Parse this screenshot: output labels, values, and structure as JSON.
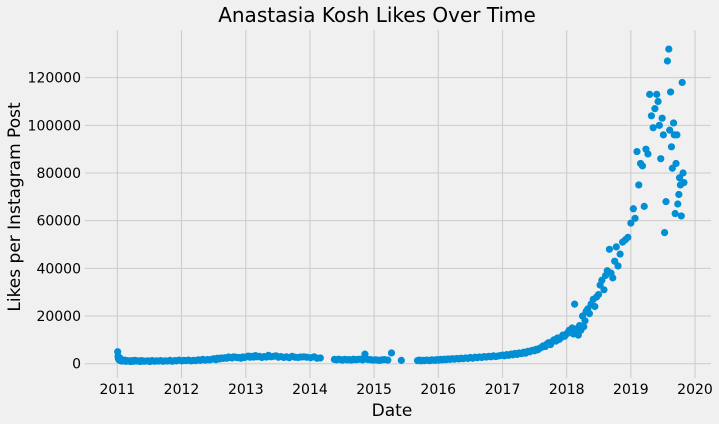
{
  "chart_data": {
    "type": "scatter",
    "title": "Anastasia Kosh Likes Over Time",
    "xlabel": "Date",
    "ylabel": "Likes per Instagram Post",
    "x_type": "date",
    "xlim": [
      "2010-07-01",
      "2020-04-01"
    ],
    "ylim": [
      -6000,
      140000
    ],
    "x_ticks": [
      "2011",
      "2012",
      "2013",
      "2014",
      "2015",
      "2016",
      "2017",
      "2018",
      "2019",
      "2020"
    ],
    "y_ticks": [
      0,
      20000,
      40000,
      60000,
      80000,
      100000,
      120000
    ],
    "grid": true,
    "legend": "none",
    "marker_color": "#008fd5",
    "background": "#f0f0f0",
    "series": [
      {
        "x": [
          "2011-01-03",
          "2011-01-05",
          "2011-01-07",
          "2011-01-10",
          "2011-01-12",
          "2011-01-15",
          "2011-01-18",
          "2011-01-22",
          "2011-01-26",
          "2011-02-01",
          "2011-02-06",
          "2011-02-12",
          "2011-02-18",
          "2011-02-25",
          "2011-03-03",
          "2011-03-10",
          "2011-03-18",
          "2011-03-26",
          "2011-04-03",
          "2011-04-12",
          "2011-04-20",
          "2011-05-01",
          "2011-05-10",
          "2011-05-20",
          "2011-06-01",
          "2011-06-12",
          "2011-06-25",
          "2011-07-05",
          "2011-07-18",
          "2011-08-01",
          "2011-08-12",
          "2011-08-25",
          "2011-09-05",
          "2011-09-18",
          "2011-10-01",
          "2011-10-15",
          "2011-10-28",
          "2011-11-10",
          "2011-11-25",
          "2011-12-05",
          "2011-12-18",
          "2012-01-03",
          "2012-01-15",
          "2012-01-28",
          "2012-02-10",
          "2012-02-25",
          "2012-03-08",
          "2012-03-22",
          "2012-04-05",
          "2012-04-18",
          "2012-05-01",
          "2012-05-14",
          "2012-05-28",
          "2012-06-10",
          "2012-06-22",
          "2012-07-05",
          "2012-07-15",
          "2012-07-25",
          "2012-08-05",
          "2012-08-15",
          "2012-08-25",
          "2012-09-05",
          "2012-09-15",
          "2012-09-25",
          "2012-10-05",
          "2012-10-15",
          "2012-10-25",
          "2012-11-05",
          "2012-11-15",
          "2012-11-25",
          "2012-12-05",
          "2012-12-15",
          "2012-12-25",
          "2013-01-05",
          "2013-01-15",
          "2013-01-25",
          "2013-02-05",
          "2013-02-15",
          "2013-02-25",
          "2013-03-08",
          "2013-03-20",
          "2013-04-02",
          "2013-04-15",
          "2013-04-28",
          "2013-05-10",
          "2013-05-25",
          "2013-06-08",
          "2013-06-22",
          "2013-07-05",
          "2013-07-20",
          "2013-08-05",
          "2013-08-20",
          "2013-09-05",
          "2013-09-22",
          "2013-10-08",
          "2013-10-25",
          "2013-11-10",
          "2013-11-28",
          "2013-12-15",
          "2014-01-05",
          "2014-01-25",
          "2014-02-10",
          "2014-03-01",
          "2014-05-20",
          "2014-06-01",
          "2014-06-12",
          "2014-06-25",
          "2014-07-05",
          "2014-07-18",
          "2014-08-01",
          "2014-08-12",
          "2014-08-25",
          "2014-09-05",
          "2014-09-18",
          "2014-10-01",
          "2014-10-15",
          "2014-10-28",
          "2014-11-10",
          "2014-11-25",
          "2014-12-10",
          "2014-12-25",
          "2015-01-08",
          "2015-01-20",
          "2015-02-01",
          "2015-02-15",
          "2015-03-01",
          "2015-03-20",
          "2015-04-10",
          "2015-06-05",
          "2015-09-05",
          "2015-09-15",
          "2015-09-25",
          "2015-10-05",
          "2015-10-15",
          "2015-10-25",
          "2015-11-05",
          "2015-11-15",
          "2015-11-25",
          "2015-12-05",
          "2015-12-15",
          "2015-12-25",
          "2016-01-05",
          "2016-01-15",
          "2016-01-25",
          "2016-02-05",
          "2016-02-15",
          "2016-02-25",
          "2016-03-08",
          "2016-03-20",
          "2016-04-02",
          "2016-04-15",
          "2016-04-28",
          "2016-05-10",
          "2016-05-22",
          "2016-06-05",
          "2016-06-18",
          "2016-07-01",
          "2016-07-15",
          "2016-07-28",
          "2016-08-10",
          "2016-08-22",
          "2016-09-05",
          "2016-09-18",
          "2016-10-01",
          "2016-10-14",
          "2016-10-27",
          "2016-11-10",
          "2016-11-23",
          "2016-12-05",
          "2016-12-18",
          "2017-01-01",
          "2017-01-12",
          "2017-01-25",
          "2017-02-05",
          "2017-02-18",
          "2017-03-01",
          "2017-03-12",
          "2017-03-25",
          "2017-04-05",
          "2017-04-18",
          "2017-05-01",
          "2017-05-12",
          "2017-05-25",
          "2017-06-05",
          "2017-06-18",
          "2017-07-01",
          "2017-07-10",
          "2017-07-20",
          "2017-08-01",
          "2017-08-10",
          "2017-08-20",
          "2017-09-01",
          "2017-09-10",
          "2017-09-20",
          "2017-10-01",
          "2017-10-10",
          "2017-10-20",
          "2017-11-01",
          "2017-11-10",
          "2017-11-20",
          "2017-12-01",
          "2017-12-10",
          "2017-12-20",
          "2018-01-01",
          "2018-01-08",
          "2018-01-15",
          "2018-01-22",
          "2018-02-01",
          "2018-02-08",
          "2018-02-15",
          "2018-02-22",
          "2018-03-01",
          "2018-03-08",
          "2018-03-15",
          "2018-03-22",
          "2018-04-01",
          "2018-04-08",
          "2018-04-15",
          "2018-04-22",
          "2018-05-01",
          "2018-05-10",
          "2018-05-20",
          "2018-06-01",
          "2018-06-10",
          "2018-06-20",
          "2018-07-01",
          "2018-07-10",
          "2018-07-20",
          "2018-08-01",
          "2018-08-10",
          "2018-08-20",
          "2018-09-01",
          "2018-09-10",
          "2018-09-20",
          "2018-10-01",
          "2018-10-10",
          "2018-10-20",
          "2018-11-01",
          "2018-11-15",
          "2018-12-01",
          "2018-12-15",
          "2019-01-01",
          "2019-01-15",
          "2019-01-25",
          "2019-02-05",
          "2019-02-15",
          "2019-02-25",
          "2019-03-08",
          "2019-03-18",
          "2019-03-28",
          "2019-04-08",
          "2019-04-18",
          "2019-04-28",
          "2019-05-08",
          "2019-05-18",
          "2019-05-28",
          "2019-06-05",
          "2019-06-12",
          "2019-06-20",
          "2019-06-28",
          "2019-07-05",
          "2019-07-12",
          "2019-07-20",
          "2019-07-28",
          "2019-08-05",
          "2019-08-10",
          "2019-08-15",
          "2019-08-20",
          "2019-08-25",
          "2019-09-01",
          "2019-09-05",
          "2019-09-10",
          "2019-09-15",
          "2019-09-20",
          "2019-09-25",
          "2019-10-01",
          "2019-10-05",
          "2019-10-10",
          "2019-10-15",
          "2019-10-20",
          "2019-10-25",
          "2019-10-30"
        ],
        "y": [
          5000,
          3200,
          2100,
          1800,
          1500,
          2400,
          1300,
          1600,
          1100,
          1400,
          1200,
          1500,
          1000,
          1300,
          1100,
          1200,
          900,
          1300,
          1000,
          1400,
          1100,
          1200,
          900,
          1300,
          1000,
          1100,
          1200,
          900,
          1300,
          1000,
          1200,
          1100,
          1300,
          1000,
          1200,
          1100,
          1400,
          1000,
          1300,
          1200,
          1500,
          1200,
          1400,
          1300,
          1500,
          1200,
          1400,
          1300,
          1600,
          1400,
          1800,
          1500,
          1700,
          1600,
          1900,
          2100,
          1700,
          2300,
          2000,
          2400,
          2200,
          2500,
          2300,
          2800,
          2600,
          2400,
          2900,
          2700,
          2500,
          2600,
          2300,
          2800,
          2600,
          2900,
          3200,
          2700,
          3100,
          2800,
          3400,
          2900,
          3100,
          2600,
          3000,
          2800,
          3500,
          2900,
          3100,
          3300,
          2700,
          3000,
          2600,
          2900,
          2500,
          3100,
          2700,
          2600,
          2800,
          2900,
          2700,
          2500,
          2900,
          2300,
          2400,
          1800,
          1600,
          1900,
          1700,
          1500,
          1800,
          1600,
          1700,
          1500,
          1900,
          1700,
          1800,
          1900,
          1600,
          4000,
          1800,
          1700,
          1500,
          1600,
          1500,
          1400,
          1600,
          1700,
          1500,
          4500,
          1400,
          1300,
          1500,
          1200,
          1400,
          1300,
          1500,
          1400,
          1300,
          1600,
          1500,
          1400,
          1700,
          1500,
          1800,
          1600,
          1900,
          1700,
          2000,
          1800,
          2100,
          1900,
          2200,
          2000,
          2300,
          2100,
          2400,
          2200,
          2600,
          2300,
          2700,
          2500,
          2800,
          2600,
          3000,
          2800,
          3100,
          2900,
          3300,
          3000,
          3200,
          3400,
          3600,
          3300,
          3800,
          3500,
          4000,
          3700,
          4300,
          3900,
          4500,
          4200,
          4800,
          4400,
          5200,
          5000,
          5600,
          5400,
          6000,
          5800,
          6500,
          6800,
          7500,
          7200,
          8200,
          8800,
          8000,
          9200,
          10000,
          9500,
          10800,
          10200,
          11000,
          12000,
          11500,
          12500,
          13000,
          14000,
          13500,
          15000,
          12500,
          25000,
          14500,
          13500,
          12000,
          16000,
          14000,
          20000,
          15500,
          18000,
          22000,
          23000,
          21000,
          25000,
          27000,
          24000,
          28000,
          29000,
          33000,
          35000,
          31000,
          37000,
          39000,
          48000,
          38000,
          36000,
          43000,
          49000,
          41000,
          46000,
          51000,
          52000,
          53000,
          59000,
          65000,
          61000,
          89000,
          75000,
          84000,
          83000,
          66000,
          90000,
          88000,
          113000,
          104000,
          99000,
          107000,
          113000,
          110000,
          100000,
          86000,
          103000,
          96000,
          55000,
          68000,
          127000,
          132000,
          98000,
          114000,
          91000,
          82000,
          101000,
          96000,
          63000,
          84000,
          96000,
          67000,
          71000,
          78000,
          75000,
          62000,
          118000,
          80000,
          76000
        ]
      }
    ]
  }
}
